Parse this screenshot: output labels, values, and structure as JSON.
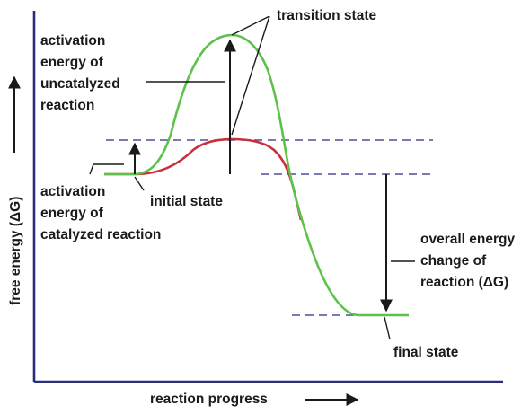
{
  "labels": {
    "transition_state": "transition state",
    "uncatalyzed": [
      "activation",
      "energy of",
      "uncatalyzed",
      "reaction"
    ],
    "catalyzed": [
      "activation",
      "energy of",
      "catalyzed reaction"
    ],
    "initial_state": "initial state",
    "overall": [
      "overall energy",
      "change of",
      "reaction (ΔG)"
    ],
    "final_state": "final state",
    "x_axis": "reaction progress",
    "y_axis": "free energy (ΔG)"
  },
  "colors": {
    "uncatalyzed_curve": "#5cc24a",
    "catalyzed_curve": "#cc2f3c",
    "axis": "#2a2d7a",
    "dashed": "#4a4f9a",
    "text": "#1a1a1a"
  }
}
